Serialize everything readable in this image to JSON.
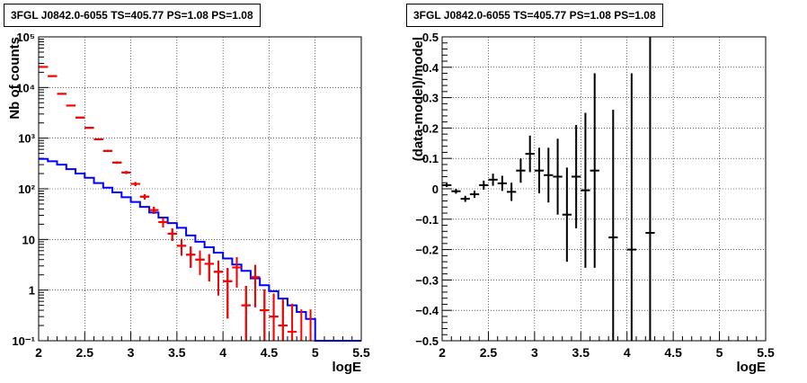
{
  "chart_data": [
    {
      "type": "line",
      "title": "3FGL J0842.0-6055 TS=405.77 PS=1.08 PS=1.08",
      "xlabel": "logE",
      "ylabel": "Nb of counts",
      "xlim": [
        2,
        5.5
      ],
      "ylim": [
        0.1,
        100000
      ],
      "yscale": "log",
      "grid": true,
      "xticks": [
        "2",
        "2.5",
        "3",
        "3.5",
        "4",
        "4.5",
        "5",
        "5.5"
      ],
      "yticks": [
        "10⁻¹",
        "1",
        "10",
        "10²",
        "10³",
        "10⁴",
        "10⁵"
      ],
      "colors": {
        "data": "#000000",
        "model": "#ff0000",
        "component": "#0000ff"
      },
      "series": [
        {
          "x": [
            2.05,
            2.15,
            2.25,
            2.35,
            2.45,
            2.55,
            2.65,
            2.75,
            2.85,
            2.95,
            3.05,
            3.15,
            3.25,
            3.35,
            3.45,
            3.55,
            3.65,
            3.75,
            3.85,
            3.95,
            4.05,
            4.15,
            4.25,
            4.35,
            4.45,
            4.55,
            4.65,
            4.75,
            4.85,
            4.95
          ],
          "values": [
            25500,
            16800,
            7500,
            4400,
            2550,
            1600,
            950,
            560,
            330,
            210,
            125,
            70,
            38,
            22,
            13,
            7.5,
            5,
            4,
            3.3,
            2.3,
            1.5,
            2.8,
            0.5,
            1.8,
            0.4,
            0.3,
            0.2,
            0.15,
            0.1,
            0.1
          ]
        },
        {
          "x": [
            2.05,
            2.15,
            2.25,
            2.35,
            2.45,
            2.55,
            2.65,
            2.75,
            2.85,
            2.95,
            3.05,
            3.15,
            3.25,
            3.35,
            3.45,
            3.55,
            3.65,
            3.75,
            3.85,
            3.95,
            4.05,
            4.15,
            4.25,
            4.35,
            4.45,
            4.55,
            4.65,
            4.75,
            4.85,
            4.95
          ],
          "values": [
            25500,
            16800,
            7500,
            4400,
            2550,
            1600,
            950,
            560,
            330,
            210,
            125,
            70,
            38,
            22,
            13,
            7.5,
            5,
            4,
            3.3,
            2.3,
            1.5,
            2.8,
            0.5,
            1.8,
            0.4,
            0.3,
            0.2,
            0.15,
            0.1,
            0.1
          ]
        },
        {
          "x": [
            2.0,
            2.1,
            2.2,
            2.3,
            2.4,
            2.5,
            2.6,
            2.7,
            2.8,
            2.9,
            3.0,
            3.1,
            3.2,
            3.3,
            3.4,
            3.5,
            3.6,
            3.7,
            3.8,
            3.9,
            4.0,
            4.1,
            4.2,
            4.3,
            4.4,
            4.5,
            4.6,
            4.7,
            4.8,
            4.9,
            5.0,
            5.5
          ],
          "values": [
            390,
            350,
            300,
            245,
            200,
            165,
            130,
            105,
            85,
            68,
            55,
            44,
            34,
            27,
            21,
            17,
            12,
            9,
            7,
            5.5,
            4.2,
            3.2,
            2.4,
            1.7,
            1.25,
            0.95,
            0.68,
            0.5,
            0.37,
            0.27,
            0.1,
            0.1
          ]
        }
      ]
    },
    {
      "type": "scatter",
      "title": "3FGL J0842.0-6055 TS=405.77 PS=1.08 PS=1.08",
      "xlabel": "logE",
      "ylabel": "(data-model)/model",
      "xlim": [
        2,
        5.5
      ],
      "ylim": [
        -0.5,
        0.5
      ],
      "grid": true,
      "xticks": [
        "2",
        "2.5",
        "3",
        "3.5",
        "4",
        "4.5",
        "5",
        "5.5"
      ],
      "yticks": [
        "−0.5",
        "−0.4",
        "−0.3",
        "−0.2",
        "−0.1",
        "0",
        "0.1",
        "0.2",
        "0.3",
        "0.4",
        "0.5"
      ],
      "series": [
        {
          "x": [
            2.05,
            2.15,
            2.25,
            2.35,
            2.45,
            2.55,
            2.65,
            2.75,
            2.85,
            2.95,
            3.05,
            3.15,
            3.25,
            3.35,
            3.45,
            3.55,
            3.65,
            3.85,
            4.05,
            4.25
          ],
          "values": [
            0.012,
            -0.008,
            -0.033,
            -0.018,
            0.012,
            0.03,
            0.018,
            -0.01,
            0.06,
            0.115,
            0.06,
            0.045,
            0.04,
            -0.085,
            0.04,
            -0.005,
            0.06,
            -0.16,
            -0.2,
            -0.145
          ],
          "errors": [
            0.006,
            0.008,
            0.01,
            0.012,
            0.015,
            0.02,
            0.025,
            0.03,
            0.04,
            0.06,
            0.075,
            0.09,
            0.125,
            0.155,
            0.17,
            0.255,
            0.32,
            0.42,
            0.58,
            0.85
          ]
        }
      ]
    }
  ]
}
